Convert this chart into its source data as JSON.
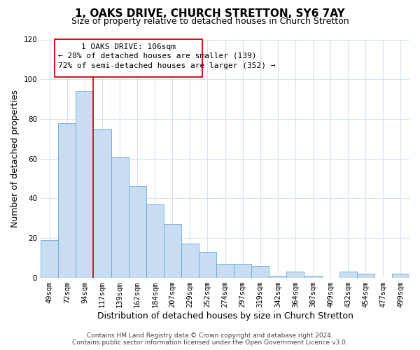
{
  "title": "1, OAKS DRIVE, CHURCH STRETTON, SY6 7AY",
  "subtitle": "Size of property relative to detached houses in Church Stretton",
  "xlabel": "Distribution of detached houses by size in Church Stretton",
  "ylabel": "Number of detached properties",
  "bar_labels": [
    "49sqm",
    "72sqm",
    "94sqm",
    "117sqm",
    "139sqm",
    "162sqm",
    "184sqm",
    "207sqm",
    "229sqm",
    "252sqm",
    "274sqm",
    "297sqm",
    "319sqm",
    "342sqm",
    "364sqm",
    "387sqm",
    "409sqm",
    "432sqm",
    "454sqm",
    "477sqm",
    "499sqm"
  ],
  "bar_values": [
    19,
    78,
    94,
    75,
    61,
    46,
    37,
    27,
    17,
    13,
    7,
    7,
    6,
    1,
    3,
    1,
    0,
    3,
    2,
    0,
    2
  ],
  "bar_color": "#c9ddf2",
  "bar_edge_color": "#6aaad4",
  "vline_color": "#cc0000",
  "vline_x_index": 2.5,
  "vline_label": "1 OAKS DRIVE: 106sqm",
  "annotation_line1": "← 28% of detached houses are smaller (139)",
  "annotation_line2": "72% of semi-detached houses are larger (352) →",
  "box_edge_color": "#cc0000",
  "ylim": [
    0,
    120
  ],
  "yticks": [
    0,
    20,
    40,
    60,
    80,
    100,
    120
  ],
  "footer_line1": "Contains HM Land Registry data © Crown copyright and database right 2024.",
  "footer_line2": "Contains public sector information licensed under the Open Government Licence v3.0.",
  "grid_color": "#d5e3f0",
  "title_fontsize": 11,
  "subtitle_fontsize": 9,
  "axis_label_fontsize": 9,
  "tick_fontsize": 7.5,
  "footer_fontsize": 6.5,
  "annotation_fontsize": 8
}
